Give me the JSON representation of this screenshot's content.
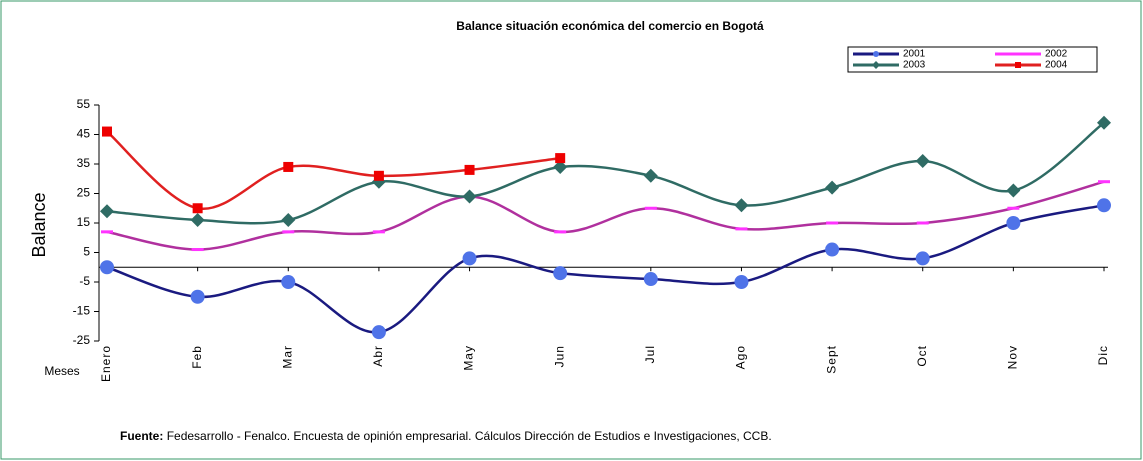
{
  "chart_data": {
    "type": "line",
    "title": "Balance situación económica del comercio en Bogotá",
    "y_label": "Balance",
    "x_label": "Meses",
    "categories": [
      "Enero",
      "Feb",
      "Mar",
      "Abr",
      "May",
      "Jun",
      "Jul",
      "Ago",
      "Sept",
      "Oct",
      "Nov",
      "Dic"
    ],
    "series": [
      {
        "name": "2001",
        "color": "#1a1a80",
        "marker": "circle",
        "marker_color": "#4f73e8",
        "values": [
          0,
          -10,
          -5,
          -22,
          3,
          -2,
          -4,
          -5,
          6,
          3,
          15,
          21
        ]
      },
      {
        "name": "2002",
        "color": "#b0309e",
        "marker": "none",
        "marker_color": "#ff33ff",
        "values": [
          12,
          6,
          12,
          12,
          24,
          12,
          20,
          13,
          15,
          15,
          20,
          29
        ]
      },
      {
        "name": "2003",
        "color": "#2f6b64",
        "marker": "diamond",
        "marker_color": "#2f6b64",
        "values": [
          19,
          16,
          16,
          29,
          24,
          34,
          31,
          21,
          27,
          36,
          26,
          49
        ]
      },
      {
        "name": "2004",
        "color": "#e02020",
        "marker": "square",
        "marker_color": "#ee0000",
        "values": [
          46,
          20,
          34,
          31,
          33,
          37,
          null,
          null,
          null,
          null,
          null,
          null
        ]
      }
    ],
    "ylim": [
      -25,
      55
    ],
    "yticks": [
      55,
      45,
      35,
      25,
      15,
      5,
      -5,
      -15,
      -25
    ],
    "smooth": true,
    "source_label": "Fuente:",
    "source": "Fedesarrollo - Fenalco. Encuesta de opinión empresarial.  Cálculos Dirección de Estudios e Investigaciones, CCB."
  }
}
